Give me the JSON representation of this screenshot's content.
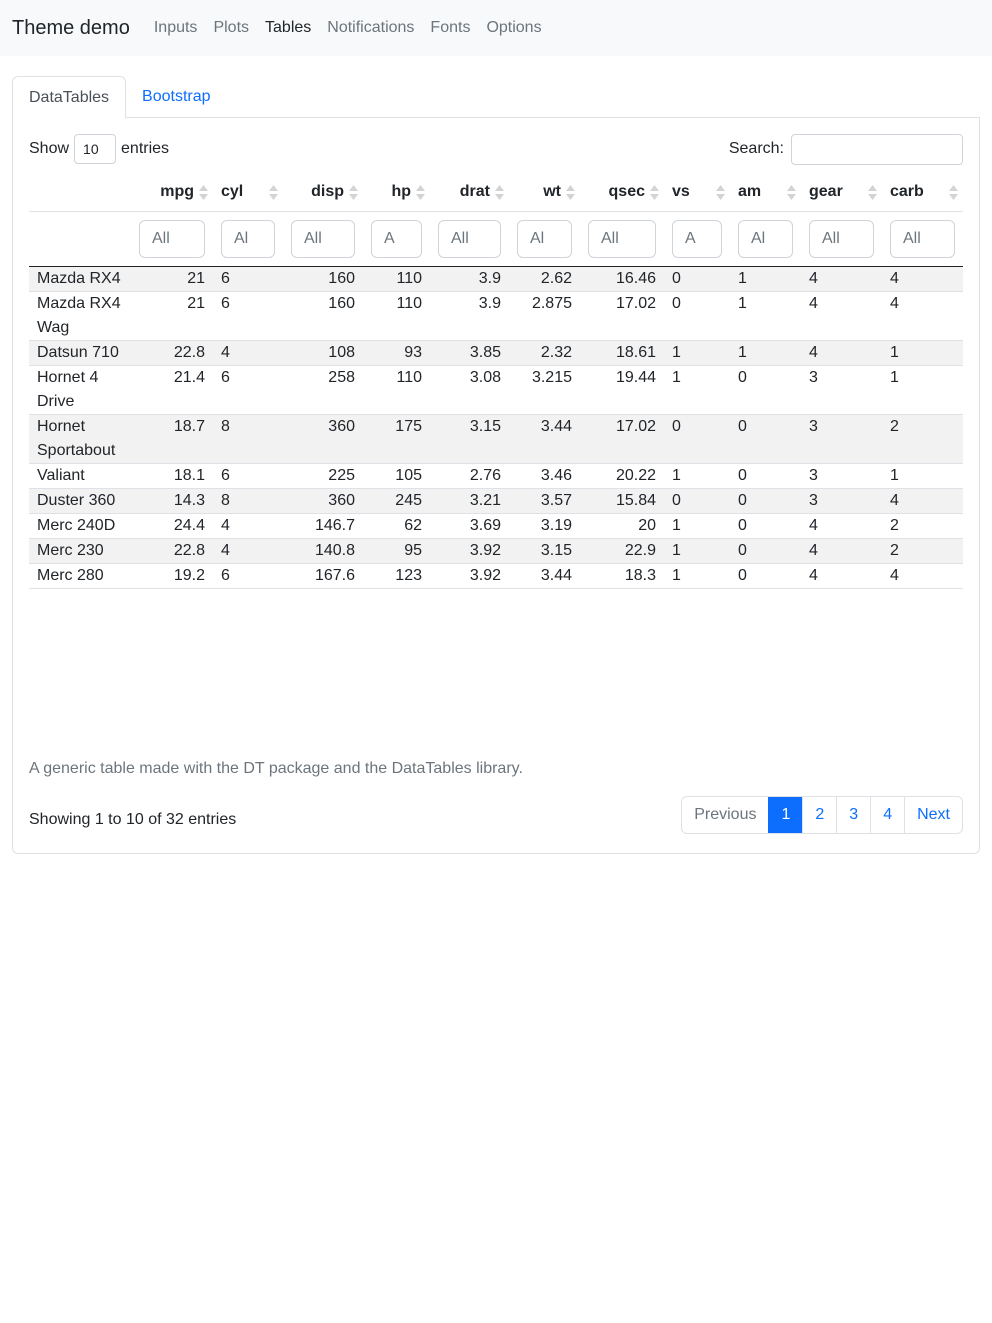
{
  "navbar": {
    "brand": "Theme demo",
    "items": [
      {
        "label": "Inputs",
        "active": false
      },
      {
        "label": "Plots",
        "active": false
      },
      {
        "label": "Tables",
        "active": true
      },
      {
        "label": "Notifications",
        "active": false
      },
      {
        "label": "Fonts",
        "active": false
      },
      {
        "label": "Options",
        "active": false
      }
    ]
  },
  "tabs": [
    {
      "label": "DataTables",
      "active": true
    },
    {
      "label": "Bootstrap",
      "active": false
    }
  ],
  "length": {
    "prefix": "Show",
    "value": "10",
    "suffix": "entries"
  },
  "search": {
    "label": "Search:",
    "value": ""
  },
  "table": {
    "columns": [
      "",
      "mpg",
      "cyl",
      "disp",
      "hp",
      "drat",
      "wt",
      "qsec",
      "vs",
      "am",
      "gear",
      "carb"
    ],
    "filters": [
      "",
      "All",
      "Al",
      "All",
      "A",
      "All",
      "Al",
      "All",
      "A",
      "Al",
      "All",
      "All"
    ],
    "rows": [
      [
        "Mazda RX4",
        "21",
        "6",
        "160",
        "110",
        "3.9",
        "2.62",
        "16.46",
        "0",
        "1",
        "4",
        "4"
      ],
      [
        "Mazda RX4 Wag",
        "21",
        "6",
        "160",
        "110",
        "3.9",
        "2.875",
        "17.02",
        "0",
        "1",
        "4",
        "4"
      ],
      [
        "Datsun 710",
        "22.8",
        "4",
        "108",
        "93",
        "3.85",
        "2.32",
        "18.61",
        "1",
        "1",
        "4",
        "1"
      ],
      [
        "Hornet 4 Drive",
        "21.4",
        "6",
        "258",
        "110",
        "3.08",
        "3.215",
        "19.44",
        "1",
        "0",
        "3",
        "1"
      ],
      [
        "Hornet Sportabout",
        "18.7",
        "8",
        "360",
        "175",
        "3.15",
        "3.44",
        "17.02",
        "0",
        "0",
        "3",
        "2"
      ],
      [
        "Valiant",
        "18.1",
        "6",
        "225",
        "105",
        "2.76",
        "3.46",
        "20.22",
        "1",
        "0",
        "3",
        "1"
      ],
      [
        "Duster 360",
        "14.3",
        "8",
        "360",
        "245",
        "3.21",
        "3.57",
        "15.84",
        "0",
        "0",
        "3",
        "4"
      ],
      [
        "Merc 240D",
        "24.4",
        "4",
        "146.7",
        "62",
        "3.69",
        "3.19",
        "20",
        "1",
        "0",
        "4",
        "2"
      ],
      [
        "Merc 230",
        "22.8",
        "4",
        "140.8",
        "95",
        "3.92",
        "3.15",
        "22.9",
        "1",
        "0",
        "4",
        "2"
      ],
      [
        "Merc 280",
        "19.2",
        "6",
        "167.6",
        "123",
        "3.92",
        "3.44",
        "18.3",
        "1",
        "0",
        "4",
        "4"
      ]
    ]
  },
  "caption": "A generic table made with the DT package and the DataTables library.",
  "info": "Showing 1 to 10 of 32 entries",
  "pagination": {
    "previous": "Previous",
    "pages": [
      "1",
      "2",
      "3",
      "4"
    ],
    "current": "1",
    "next": "Next"
  },
  "colors": {
    "accent": "#0d6efd",
    "stripe": "#f2f2f2",
    "muted": "#6c757d"
  }
}
